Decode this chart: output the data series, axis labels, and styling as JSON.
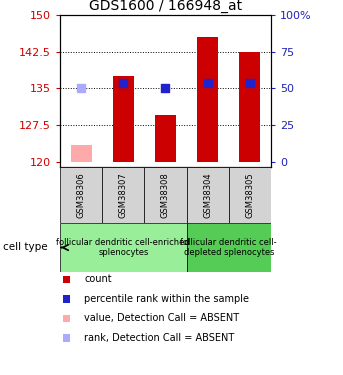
{
  "title": "GDS1600 / 166948_at",
  "samples": [
    "GSM38306",
    "GSM38307",
    "GSM38308",
    "GSM38304",
    "GSM38305"
  ],
  "bar_values": [
    123.5,
    137.5,
    129.5,
    145.5,
    142.5
  ],
  "bar_colors": [
    "#ffaaaa",
    "#cc0000",
    "#cc0000",
    "#cc0000",
    "#cc0000"
  ],
  "rank_values": [
    135.0,
    136.2,
    135.0,
    136.2,
    136.2
  ],
  "rank_colors": [
    "#aaaaff",
    "#2222cc",
    "#2222cc",
    "#2222cc",
    "#2222cc"
  ],
  "ylim_left": [
    119,
    150
  ],
  "yticks_left": [
    120,
    127.5,
    135,
    142.5,
    150
  ],
  "ytick_labels_left": [
    "120",
    "127.5",
    "135",
    "142.5",
    "150"
  ],
  "yticks_right_vals": [
    0,
    25,
    50,
    75,
    100
  ],
  "ytick_labels_right": [
    "0",
    "25",
    "50",
    "75",
    "100%"
  ],
  "group1_samples": [
    0,
    1,
    2
  ],
  "group2_samples": [
    3,
    4
  ],
  "group1_label": "follicular dendritic cell-enriched\nsplenocytes",
  "group2_label": "follicular dendritic cell-\ndepleted splenocytes",
  "cell_type_label": "cell type",
  "legend_items": [
    {
      "color": "#cc0000",
      "label": "count"
    },
    {
      "color": "#2222cc",
      "label": "percentile rank within the sample"
    },
    {
      "color": "#ffaaaa",
      "label": "value, Detection Call = ABSENT"
    },
    {
      "color": "#aaaaff",
      "label": "rank, Detection Call = ABSENT"
    }
  ],
  "bar_bottom": 120,
  "left_axis_color": "#cc0000",
  "right_axis_color": "#2222bb",
  "group1_fill": "#99ee99",
  "group2_fill": "#55cc55",
  "sample_bg": "#d3d3d3",
  "title_fontsize": 10,
  "tick_fontsize": 8,
  "sample_fontsize": 6,
  "group_fontsize": 6,
  "legend_fontsize": 7
}
